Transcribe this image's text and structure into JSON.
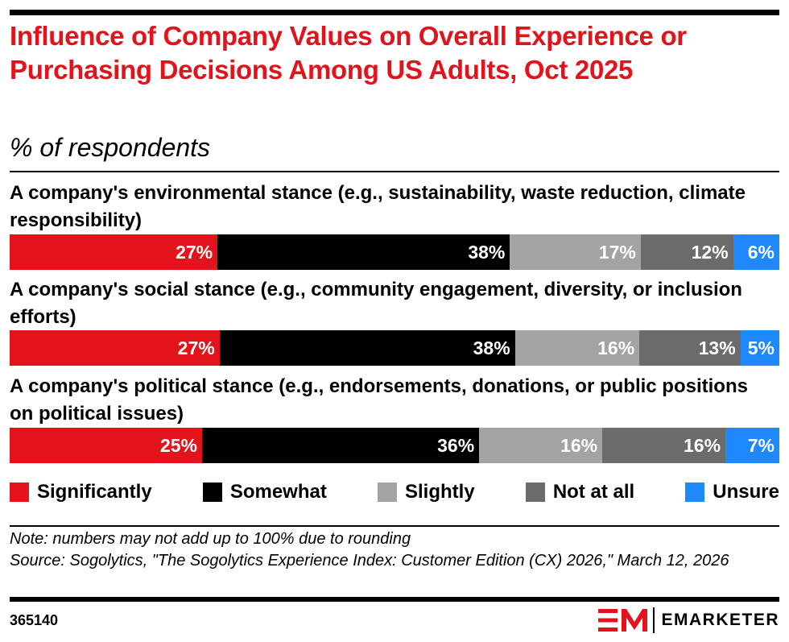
{
  "header": {
    "title": "Influence of Company Values on Overall Experience or Purchasing Decisions Among US Adults, Oct 2025",
    "subtitle": "% of respondents"
  },
  "chart_data": {
    "type": "bar",
    "orientation": "horizontal",
    "stacked": true,
    "title": "Influence of Company Values on Overall Experience or Purchasing Decisions Among US Adults, Oct 2025",
    "subtitle": "% of respondents",
    "categories": [
      "A company's environmental stance (e.g., sustainability, waste reduction, climate responsibility)",
      "A company's social stance (e.g., community engagement, diversity, or inclusion efforts)",
      "A company's political stance (e.g., endorsements, donations, or public positions on political issues)"
    ],
    "series": [
      {
        "name": "Significantly",
        "color": "#e3131b",
        "values": [
          27,
          27,
          25
        ]
      },
      {
        "name": "Somewhat",
        "color": "#000000",
        "values": [
          38,
          38,
          36
        ]
      },
      {
        "name": "Slightly",
        "color": "#a3a3a3",
        "values": [
          17,
          16,
          16
        ]
      },
      {
        "name": "Not at all",
        "color": "#6b6b6b",
        "values": [
          12,
          13,
          16
        ]
      },
      {
        "name": "Unsure",
        "color": "#1e88ff",
        "values": [
          6,
          5,
          7
        ]
      }
    ],
    "value_suffix": "%",
    "legend_position": "bottom",
    "grid": false
  },
  "footer": {
    "note": "Note: numbers may not add up to 100% due to rounding",
    "source": "Source: Sogolytics, \"The Sogolytics Experience Index: Customer Edition (CX) 2026,\" March 12, 2026",
    "chart_id": "365140",
    "brand": "EMARKETER"
  },
  "colors": {
    "accent": "#e3131b"
  },
  "icons": {
    "brand_logo": "em-logo-icon"
  }
}
